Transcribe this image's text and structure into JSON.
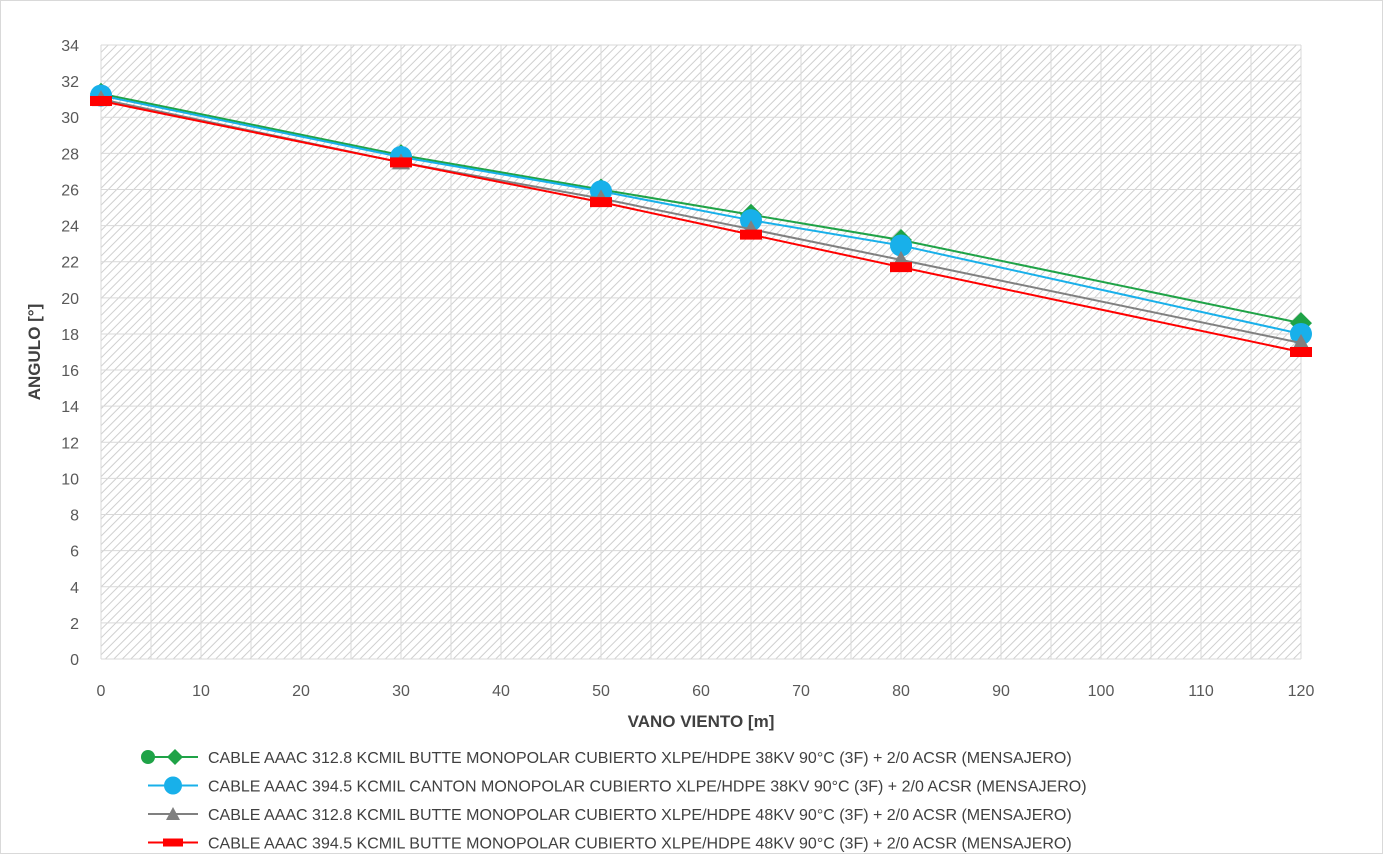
{
  "chart_data": {
    "type": "line",
    "title": "",
    "xlabel": "VANO VIENTO [m]",
    "ylabel": "ANGULO [°]",
    "xlim": [
      0,
      120
    ],
    "ylim": [
      0,
      34
    ],
    "xticks": [
      0,
      10,
      20,
      30,
      40,
      50,
      60,
      70,
      80,
      90,
      100,
      110,
      120
    ],
    "yticks": [
      0,
      2,
      4,
      6,
      8,
      10,
      12,
      14,
      16,
      18,
      20,
      22,
      24,
      26,
      28,
      30,
      32,
      34
    ],
    "grid": true,
    "legend_position": "bottom",
    "x": [
      0,
      30,
      50,
      65,
      80,
      120
    ],
    "series": [
      {
        "name": "CABLE AAAC 312.8 KCMIL BUTTE MONOPOLAR CUBIERTO XLPE/HDPE 38KV 90°C (3F) + 2/0 ACSR  (MENSAJERO)",
        "color": "#1fa347",
        "marker": "diamond",
        "values": [
          31.3,
          27.9,
          26.0,
          24.6,
          23.2,
          18.6
        ]
      },
      {
        "name": "CABLE AAAC 394.5 KCMIL CANTON MONOPOLAR CUBIERTO XLPE/HDPE 38KV 90°C (3F) + 2/0 ACSR  (MENSAJERO)",
        "color": "#18b0ea",
        "marker": "circle",
        "values": [
          31.2,
          27.8,
          25.9,
          24.3,
          22.9,
          18.0
        ]
      },
      {
        "name": "CABLE AAAC 312.8 KCMIL BUTTE MONOPOLAR CUBIERTO XLPE/HDPE 48KV 90°C (3F) + 2/0 ACSR  (MENSAJERO)",
        "color": "#808080",
        "marker": "triangle",
        "values": [
          31.0,
          27.5,
          25.5,
          23.8,
          22.1,
          17.5
        ]
      },
      {
        "name": "CABLE AAAC 394.5 KCMIL BUTTE MONOPOLAR CUBIERTO XLPE/HDPE 48KV 90°C (3F) + 2/0 ACSR  (MENSAJERO)",
        "color": "#ff0000",
        "marker": "dash",
        "values": [
          30.9,
          27.5,
          25.3,
          23.5,
          21.7,
          17.0
        ]
      }
    ]
  }
}
